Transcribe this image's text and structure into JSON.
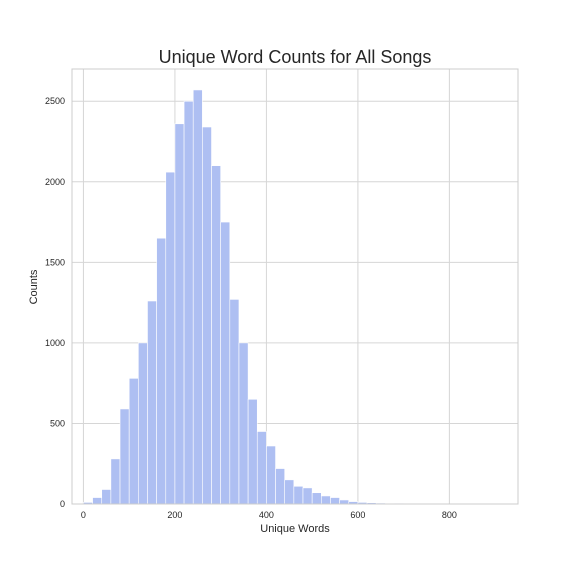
{
  "chart_data": {
    "type": "bar",
    "title": "Unique Word Counts for All Songs",
    "xlabel": "Unique Words",
    "ylabel": "Counts",
    "xlim": [
      -25,
      950
    ],
    "ylim": [
      0,
      2700
    ],
    "xticks": [
      0,
      200,
      400,
      600,
      800
    ],
    "yticks": [
      0,
      500,
      1000,
      1500,
      2000,
      2500
    ],
    "grid": true,
    "bar_color": "#aebff2",
    "bins": {
      "start": 0,
      "width": 20,
      "counts": [
        10,
        40,
        90,
        280,
        590,
        780,
        1000,
        1260,
        1650,
        2060,
        2360,
        2500,
        2570,
        2340,
        2100,
        1750,
        1270,
        1000,
        650,
        450,
        360,
        220,
        150,
        110,
        100,
        70,
        50,
        40,
        25,
        15,
        10,
        8,
        6,
        5,
        4,
        3,
        2,
        2,
        1,
        1,
        1,
        1,
        5,
        1,
        1
      ]
    }
  }
}
